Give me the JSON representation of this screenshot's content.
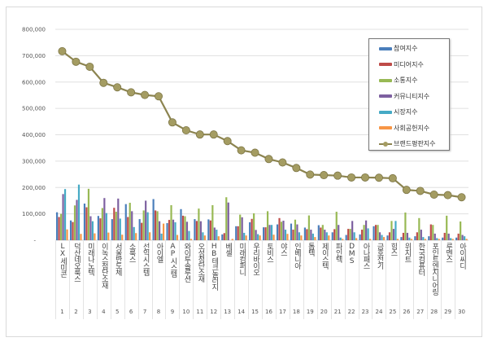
{
  "chart_data": {
    "type": "bar",
    "title": "",
    "xlabel": "",
    "ylabel": "",
    "ylim": [
      0,
      800000
    ],
    "yticks": [
      "-",
      "100,000",
      "200,000",
      "300,000",
      "400,000",
      "500,000",
      "600,000",
      "700,000",
      "800,000"
    ],
    "grid": true,
    "legend_position": "top-right",
    "categories": [
      "LX세미콘",
      "덕산네오룩스",
      "미래나노텍",
      "이녹스첨단소재",
      "서울반도체",
      "소룩스",
      "선익시스템",
      "아이엘",
      "AP시스템",
      "와이투솔루션",
      "오성첨단소재",
      "HB테크놀러지",
      "베셀",
      "미래컴퍼니",
      "우리바이오",
      "토비스",
      "야스",
      "인베니아",
      "톱텍",
      "제이스텍",
      "파인텍",
      "DMS",
      "아나패스",
      "금호전기",
      "힘스",
      "위지트",
      "한국컴퓨터",
      "포인트엔지니어링",
      "루멘스",
      "아이씨디"
    ],
    "ranks": [
      "1",
      "2",
      "3",
      "4",
      "5",
      "6",
      "7",
      "8",
      "9",
      "10",
      "11",
      "12",
      "13",
      "14",
      "15",
      "16",
      "17",
      "18",
      "19",
      "20",
      "21",
      "22",
      "23",
      "24",
      "25",
      "26",
      "27",
      "28",
      "29",
      "30"
    ],
    "series": [
      {
        "name": "참여지수",
        "type": "bar",
        "color": "#4a7ebb",
        "values": [
          106000,
          75000,
          139000,
          92000,
          80000,
          137000,
          80000,
          156000,
          65000,
          118000,
          80000,
          79000,
          22000,
          53000,
          68000,
          49000,
          60000,
          63000,
          48000,
          57000,
          30000,
          20000,
          22000,
          53000,
          18000,
          12000,
          15000,
          15000,
          10000,
          10000
        ]
      },
      {
        "name": "미디어지수",
        "type": "bar",
        "color": "#be4b48",
        "values": [
          88000,
          69000,
          125000,
          83000,
          123000,
          88000,
          66000,
          113000,
          77000,
          93000,
          73000,
          75000,
          27000,
          53000,
          81000,
          49000,
          84000,
          40000,
          42000,
          48000,
          42000,
          43000,
          40000,
          58000,
          30000,
          28000,
          30000,
          60000,
          28000,
          25000
        ]
      },
      {
        "name": "소통지수",
        "type": "bar",
        "color": "#98b954",
        "values": [
          100000,
          132000,
          195000,
          122000,
          108000,
          142000,
          113000,
          110000,
          133000,
          91000,
          120000,
          133000,
          163000,
          97000,
          102000,
          110000,
          70000,
          78000,
          94000,
          58000,
          108000,
          43000,
          58000,
          58000,
          73000,
          105000,
          84000,
          58000,
          93000,
          71000
        ]
      },
      {
        "name": "커뮤니티지수",
        "type": "bar",
        "color": "#7d60a0",
        "values": [
          175000,
          153000,
          91000,
          160000,
          158000,
          110000,
          150000,
          72000,
          78000,
          70000,
          72000,
          48000,
          143000,
          87000,
          39000,
          58000,
          74000,
          60000,
          40000,
          40000,
          58000,
          73000,
          75000,
          30000,
          43000,
          28000,
          40000,
          25000,
          25000,
          20000
        ]
      },
      {
        "name": "시장지수",
        "type": "bar",
        "color": "#46aac5",
        "values": [
          194000,
          211000,
          72000,
          103000,
          82000,
          50000,
          106000,
          25000,
          68000,
          35000,
          30000,
          40000,
          0,
          28000,
          23000,
          58000,
          40000,
          30000,
          25000,
          30000,
          10000,
          30000,
          45000,
          20000,
          73000,
          10000,
          12000,
          8000,
          8000,
          15000
        ]
      },
      {
        "name": "사회공헌지수",
        "type": "bar",
        "color": "#f79646",
        "values": [
          41000,
          24000,
          26000,
          29000,
          21000,
          27000,
          30000,
          63000,
          20000,
          5000,
          18000,
          15000,
          5000,
          18000,
          18000,
          21000,
          24000,
          18000,
          12000,
          18000,
          5000,
          8000,
          5000,
          12000,
          5000,
          5000,
          5000,
          5000,
          5000,
          5000
        ]
      },
      {
        "name": "브랜드평판지수",
        "type": "line",
        "color": "#8c8450",
        "values": [
          717000,
          677000,
          658000,
          597000,
          580000,
          561000,
          551000,
          546000,
          447000,
          417000,
          401000,
          401000,
          376000,
          341000,
          332000,
          308000,
          295000,
          274000,
          249000,
          247000,
          245000,
          238000,
          238000,
          237000,
          235000,
          191000,
          187000,
          173000,
          171000,
          163000
        ]
      }
    ]
  }
}
